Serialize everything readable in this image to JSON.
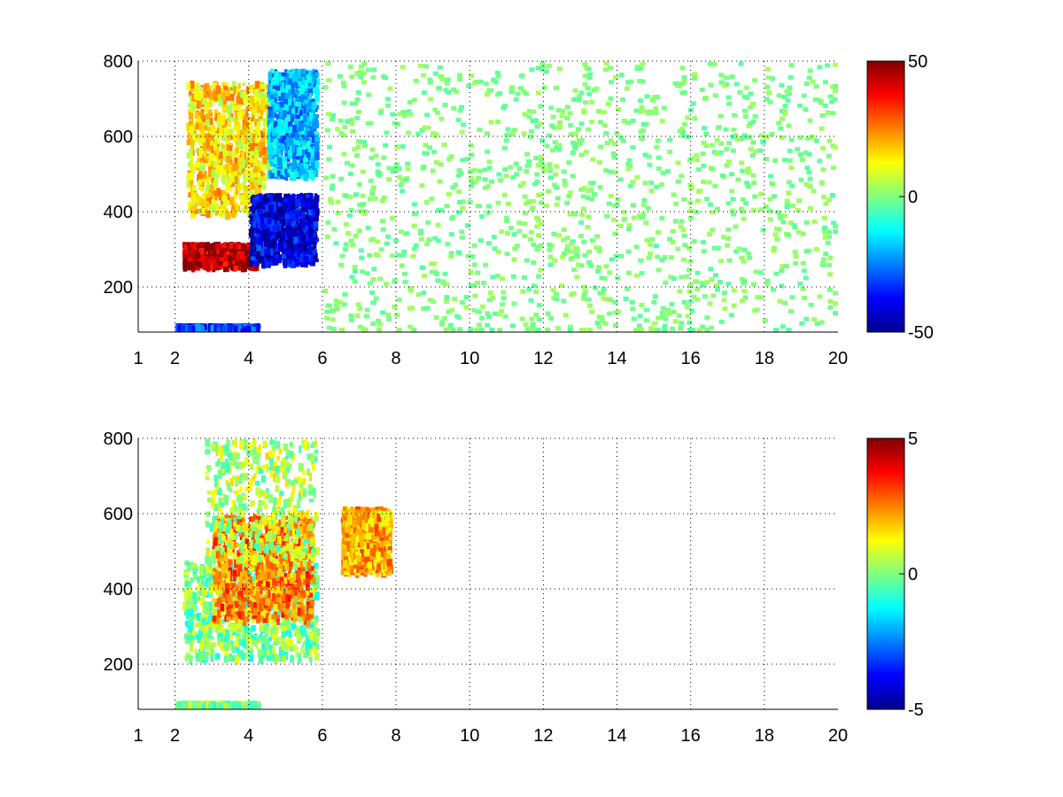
{
  "chart_data": [
    {
      "type": "heatmap",
      "title": "",
      "xlabel": "",
      "ylabel": "",
      "xlim": [
        1,
        20
      ],
      "ylim": [
        80,
        800
      ],
      "x_ticks": [
        1,
        2,
        4,
        6,
        8,
        10,
        12,
        14,
        16,
        18,
        20
      ],
      "x_tick_labels": [
        "1",
        "2",
        "4",
        "6",
        "8",
        "10",
        "12",
        "14",
        "16",
        "18",
        "20"
      ],
      "y_ticks": [
        200,
        400,
        600,
        800
      ],
      "y_tick_labels": [
        "200",
        "400",
        "600",
        "800"
      ],
      "grid": true,
      "colormap": "jet",
      "colorbar": {
        "min": -50,
        "max": 50,
        "tick_labels": [
          "50",
          "0",
          "-50"
        ],
        "ticks": [
          50,
          0,
          -50
        ]
      },
      "features": [
        {
          "desc": "positive band",
          "x": [
            2.2,
            4.2
          ],
          "y": [
            260,
            320
          ],
          "value": 45
        },
        {
          "desc": "positive diffuse region",
          "x": [
            2.3,
            4.5
          ],
          "y": [
            400,
            750
          ],
          "value": 15
        },
        {
          "desc": "negative band",
          "x": [
            4.0,
            5.8
          ],
          "y": [
            270,
            450
          ],
          "value": -40
        },
        {
          "desc": "negative upper region",
          "x": [
            4.5,
            5.8
          ],
          "y": [
            500,
            780
          ],
          "value": -20
        },
        {
          "desc": "low-altitude strip",
          "x": [
            2.0,
            4.2
          ],
          "y": [
            80,
            100
          ],
          "value": -30
        },
        {
          "desc": "scattered near-zero pixels",
          "x": [
            6,
            20
          ],
          "y": [
            80,
            800
          ],
          "value": 0
        }
      ]
    },
    {
      "type": "heatmap",
      "title": "",
      "xlabel": "",
      "ylabel": "",
      "xlim": [
        1,
        20
      ],
      "ylim": [
        80,
        800
      ],
      "x_ticks": [
        1,
        2,
        4,
        6,
        8,
        10,
        12,
        14,
        16,
        18,
        20
      ],
      "x_tick_labels": [
        "1",
        "2",
        "4",
        "6",
        "8",
        "10",
        "12",
        "14",
        "16",
        "18",
        "20"
      ],
      "y_ticks": [
        200,
        400,
        600,
        800
      ],
      "y_tick_labels": [
        "200",
        "400",
        "600",
        "800"
      ],
      "grid": true,
      "colormap": "jet",
      "colorbar": {
        "min": -5,
        "max": 5,
        "tick_labels": [
          "5",
          "0",
          "-5"
        ],
        "ticks": [
          5,
          0,
          -5
        ]
      },
      "features": [
        {
          "desc": "near-zero band",
          "x": [
            2.2,
            5.8
          ],
          "y": [
            220,
            480
          ],
          "value": 0
        },
        {
          "desc": "positive diagonal streak",
          "x": [
            3.0,
            5.7
          ],
          "y": [
            320,
            600
          ],
          "value": 2.5
        },
        {
          "desc": "sparse upper region",
          "x": [
            2.8,
            5.8
          ],
          "y": [
            480,
            800
          ],
          "value": 0.5
        },
        {
          "desc": "positive cluster",
          "x": [
            6.5,
            7.8
          ],
          "y": [
            450,
            620
          ],
          "value": 2
        },
        {
          "desc": "low-altitude strip",
          "x": [
            2.0,
            4.2
          ],
          "y": [
            80,
            100
          ],
          "value": 0
        }
      ]
    }
  ]
}
